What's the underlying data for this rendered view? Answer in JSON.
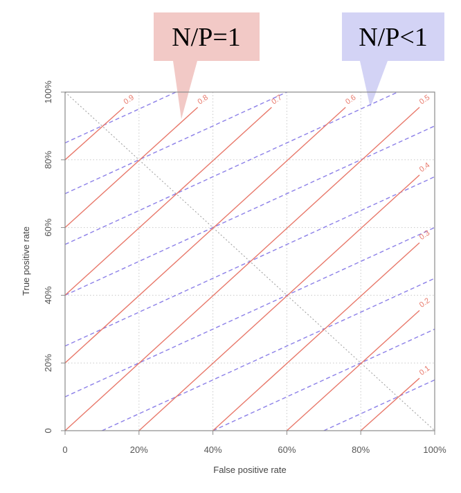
{
  "chart_data": {
    "type": "line",
    "xlabel": "False positive rate",
    "ylabel": "True positive rate",
    "xlim": [
      0,
      100
    ],
    "ylim": [
      0,
      100
    ],
    "x_ticks": [
      "0",
      "20%",
      "40%",
      "60%",
      "80%",
      "100%"
    ],
    "y_ticks": [
      "0",
      "20%",
      "40%",
      "60%",
      "80%",
      "100%"
    ],
    "grid": true,
    "diagonal_reference": [
      [
        0,
        100
      ],
      [
        100,
        0
      ]
    ],
    "series": [
      {
        "name": "N/P=1",
        "color": "#e8786a",
        "style": "solid",
        "slope": 1,
        "lines": [
          {
            "label": "0.9",
            "points": [
              [
                0,
                80
              ],
              [
                20,
                100
              ]
            ]
          },
          {
            "label": "0.8",
            "points": [
              [
                0,
                60
              ],
              [
                40,
                100
              ]
            ]
          },
          {
            "label": "0.7",
            "points": [
              [
                0,
                40
              ],
              [
                60,
                100
              ]
            ]
          },
          {
            "label": "0.6",
            "points": [
              [
                0,
                20
              ],
              [
                80,
                100
              ]
            ]
          },
          {
            "label": "0.5",
            "points": [
              [
                0,
                0
              ],
              [
                100,
                100
              ]
            ]
          },
          {
            "label": "0.4",
            "points": [
              [
                20,
                0
              ],
              [
                100,
                80
              ]
            ]
          },
          {
            "label": "0.3",
            "points": [
              [
                40,
                0
              ],
              [
                100,
                60
              ]
            ]
          },
          {
            "label": "0.2",
            "points": [
              [
                60,
                0
              ],
              [
                100,
                40
              ]
            ]
          },
          {
            "label": "0.1",
            "points": [
              [
                80,
                0
              ],
              [
                100,
                20
              ]
            ]
          }
        ]
      },
      {
        "name": "N/P<1",
        "color": "#8b7fe8",
        "style": "dashed",
        "slope": 0.5,
        "lines": [
          {
            "points": [
              [
                0,
                85
              ],
              [
                30,
                100
              ]
            ]
          },
          {
            "points": [
              [
                0,
                70
              ],
              [
                60,
                100
              ]
            ]
          },
          {
            "points": [
              [
                0,
                55
              ],
              [
                90,
                100
              ]
            ]
          },
          {
            "points": [
              [
                0,
                40
              ],
              [
                100,
                90
              ]
            ]
          },
          {
            "points": [
              [
                0,
                25
              ],
              [
                100,
                75
              ]
            ]
          },
          {
            "points": [
              [
                0,
                10
              ],
              [
                100,
                60
              ]
            ]
          },
          {
            "points": [
              [
                10,
                0
              ],
              [
                100,
                45
              ]
            ]
          },
          {
            "points": [
              [
                40,
                0
              ],
              [
                100,
                30
              ]
            ]
          },
          {
            "points": [
              [
                70,
                0
              ],
              [
                100,
                15
              ]
            ]
          }
        ]
      }
    ]
  },
  "callouts": {
    "left": {
      "text": "N/P=1",
      "fill": "#f2c9c6"
    },
    "right": {
      "text": "N/P<1",
      "fill": "#d3d3f5"
    }
  }
}
